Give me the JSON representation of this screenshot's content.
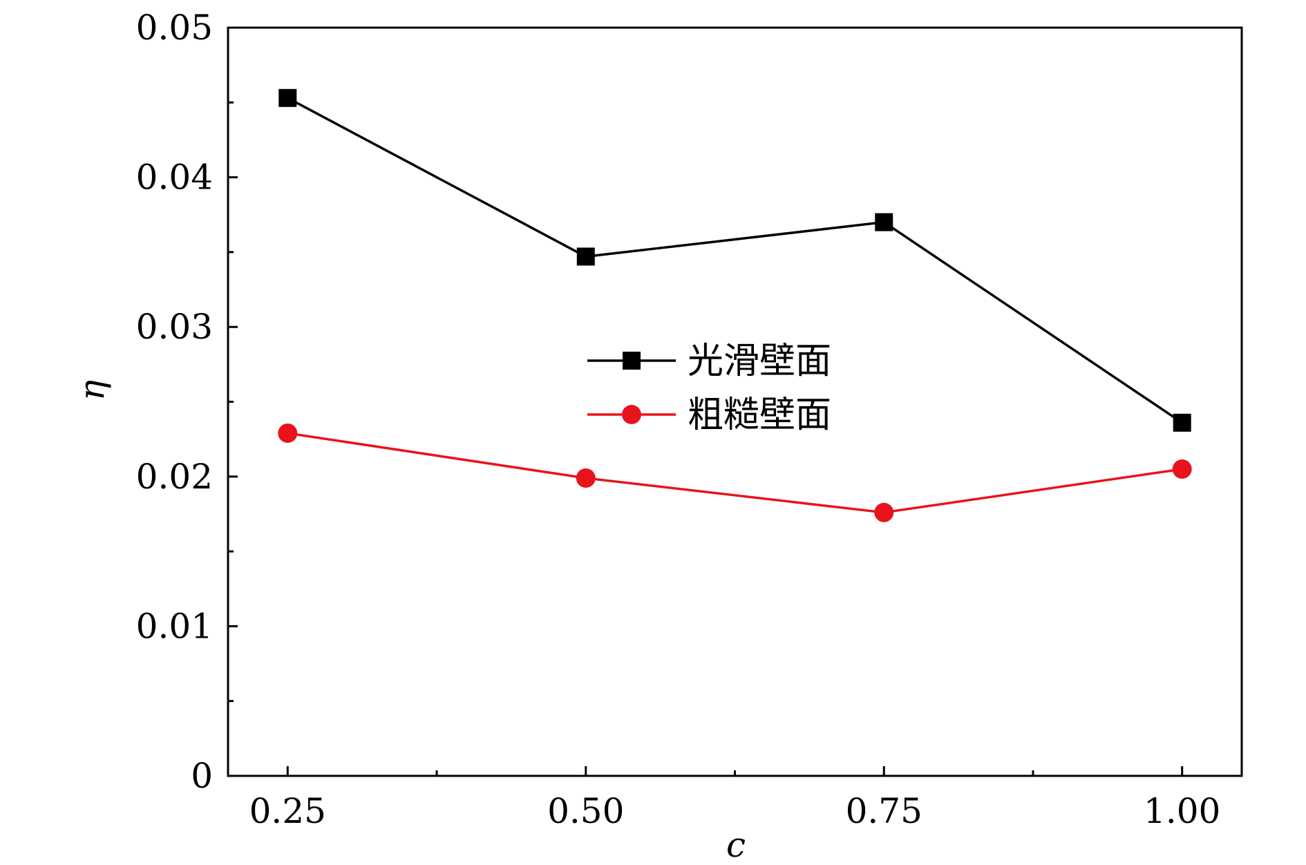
{
  "chart_data": {
    "type": "line",
    "title": "",
    "xlabel": "c",
    "ylabel": "η",
    "x": [
      0.25,
      0.5,
      0.75,
      1.0
    ],
    "xlim": [
      0.2,
      1.05
    ],
    "ylim": [
      0,
      0.05
    ],
    "x_ticks": [
      0.25,
      0.5,
      0.75,
      1.0
    ],
    "x_tick_labels": [
      "0.25",
      "0.50",
      "0.75",
      "1.00"
    ],
    "x_minor_ticks": [
      0.375,
      0.625,
      0.875
    ],
    "y_ticks": [
      0,
      0.01,
      0.02,
      0.03,
      0.04,
      0.05
    ],
    "y_tick_labels": [
      "0",
      "0.01",
      "0.02",
      "0.03",
      "0.04",
      "0.05"
    ],
    "y_minor_ticks": [
      0.005,
      0.015,
      0.025,
      0.035,
      0.045
    ],
    "grid": false,
    "legend_position": "center",
    "series": [
      {
        "name": "光滑壁面",
        "values": [
          0.0453,
          0.0347,
          0.037,
          0.0236
        ],
        "color": "#000000",
        "marker": "square"
      },
      {
        "name": "粗糙壁面",
        "values": [
          0.0229,
          0.0199,
          0.0176,
          0.0205
        ],
        "color": "#e8141c",
        "marker": "circle"
      }
    ]
  }
}
